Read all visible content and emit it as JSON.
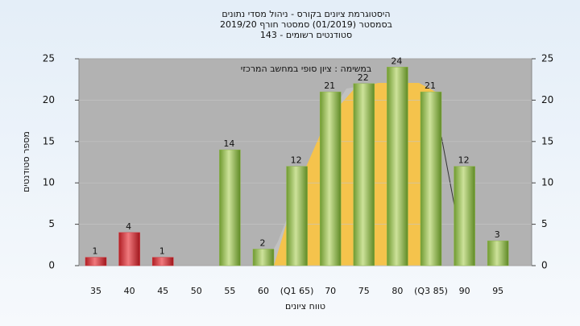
{
  "chart_data": {
    "type": "bar",
    "title": [
      "היסטוגרמת ציונים בקורס - ניהול מסדי נתונים",
      "בסמסטר  (01/2019)  סמסטר חורף  2019/20",
      "סטודנטים רשומים - 143"
    ],
    "legend_text": "במשימה : ציון סופי במחשב המרכזי",
    "x_label": "טווח ציונים",
    "y_label": "מספר סטודנטים",
    "categories": [
      "35",
      "40",
      "45",
      "50",
      "55",
      "60",
      "(Q1 65)",
      "70",
      "75",
      "80",
      "(Q3 85)",
      "90",
      "95"
    ],
    "values": [
      1,
      4,
      1,
      null,
      14,
      2,
      12,
      21,
      22,
      24,
      21,
      12,
      3
    ],
    "colors": [
      "#d8333a",
      "#d8333a",
      "#d8333a",
      "#8db548",
      "#8db548",
      "#8db548",
      "#8db548",
      "#8db548",
      "#8db548",
      "#8db548",
      "#8db548",
      "#8db548",
      "#8db548"
    ],
    "ylim": [
      0,
      25
    ],
    "yticks": [
      0,
      5,
      10,
      15,
      20,
      25
    ],
    "grid": true
  }
}
